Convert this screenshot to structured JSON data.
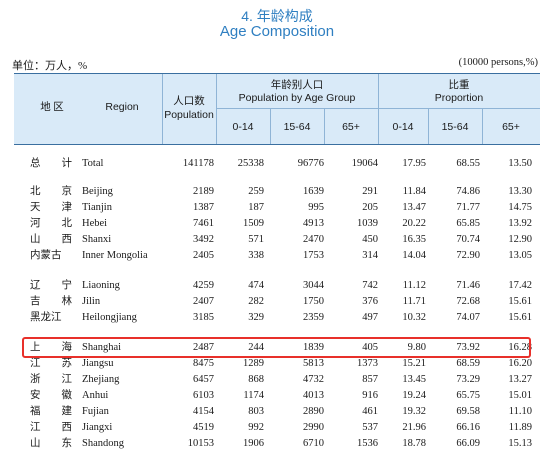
{
  "page": {
    "title_cn": "4. 年龄构成",
    "title_en": "Age Composition",
    "unit_left": "单位：万人，%",
    "unit_right": "(10000 persons,%)"
  },
  "header": {
    "region_cn": "地 区",
    "region_en": "Region",
    "pop_cn": "人口数",
    "pop_en": "Population",
    "age_group_cn": "年龄别人口",
    "age_group_en": "Population by Age Group",
    "proportion_cn": "比重",
    "proportion_en": "Proportion",
    "age_cols": [
      "0-14",
      "15-64",
      "65+"
    ],
    "prop_cols": [
      "0-14",
      "15-64",
      "65+"
    ]
  },
  "rows": [
    {
      "cn": "总　　计",
      "en": "Total",
      "pop": "141178",
      "a1": "25338",
      "a2": "96776",
      "a3": "19064",
      "p1": "17.95",
      "p2": "68.55",
      "p3": "13.50"
    },
    {
      "cn": "北　　京",
      "en": "Beijing",
      "pop": "2189",
      "a1": "259",
      "a2": "1639",
      "a3": "291",
      "p1": "11.84",
      "p2": "74.86",
      "p3": "13.30"
    },
    {
      "cn": "天　　津",
      "en": "Tianjin",
      "pop": "1387",
      "a1": "187",
      "a2": "995",
      "a3": "205",
      "p1": "13.47",
      "p2": "71.77",
      "p3": "14.75"
    },
    {
      "cn": "河　　北",
      "en": "Hebei",
      "pop": "7461",
      "a1": "1509",
      "a2": "4913",
      "a3": "1039",
      "p1": "20.22",
      "p2": "65.85",
      "p3": "13.92"
    },
    {
      "cn": "山　　西",
      "en": "Shanxi",
      "pop": "3492",
      "a1": "571",
      "a2": "2470",
      "a3": "450",
      "p1": "16.35",
      "p2": "70.74",
      "p3": "12.90"
    },
    {
      "cn": "内蒙古",
      "en": "Inner Mongolia",
      "pop": "2405",
      "a1": "338",
      "a2": "1753",
      "a3": "314",
      "p1": "14.04",
      "p2": "72.90",
      "p3": "13.05"
    },
    {
      "cn": "辽　　宁",
      "en": "Liaoning",
      "pop": "4259",
      "a1": "474",
      "a2": "3044",
      "a3": "742",
      "p1": "11.12",
      "p2": "71.46",
      "p3": "17.42"
    },
    {
      "cn": "吉　　林",
      "en": "Jilin",
      "pop": "2407",
      "a1": "282",
      "a2": "1750",
      "a3": "376",
      "p1": "11.71",
      "p2": "72.68",
      "p3": "15.61"
    },
    {
      "cn": "黑龙江",
      "en": "Heilongjiang",
      "pop": "3185",
      "a1": "329",
      "a2": "2359",
      "a3": "497",
      "p1": "10.32",
      "p2": "74.07",
      "p3": "15.61"
    },
    {
      "cn": "上　　海",
      "en": "Shanghai",
      "pop": "2487",
      "a1": "244",
      "a2": "1839",
      "a3": "405",
      "p1": "9.80",
      "p2": "73.92",
      "p3": "16.28"
    },
    {
      "cn": "江　　苏",
      "en": "Jiangsu",
      "pop": "8475",
      "a1": "1289",
      "a2": "5813",
      "a3": "1373",
      "p1": "15.21",
      "p2": "68.59",
      "p3": "16.20"
    },
    {
      "cn": "浙　　江",
      "en": "Zhejiang",
      "pop": "6457",
      "a1": "868",
      "a2": "4732",
      "a3": "857",
      "p1": "13.45",
      "p2": "73.29",
      "p3": "13.27"
    },
    {
      "cn": "安　　徽",
      "en": "Anhui",
      "pop": "6103",
      "a1": "1174",
      "a2": "4013",
      "a3": "916",
      "p1": "19.24",
      "p2": "65.75",
      "p3": "15.01"
    },
    {
      "cn": "福　　建",
      "en": "Fujian",
      "pop": "4154",
      "a1": "803",
      "a2": "2890",
      "a3": "461",
      "p1": "19.32",
      "p2": "69.58",
      "p3": "11.10"
    },
    {
      "cn": "江　　西",
      "en": "Jiangxi",
      "pop": "4519",
      "a1": "992",
      "a2": "2990",
      "a3": "537",
      "p1": "21.96",
      "p2": "66.16",
      "p3": "11.89"
    },
    {
      "cn": "山　　东",
      "en": "Shandong",
      "pop": "10153",
      "a1": "1906",
      "a2": "6710",
      "a3": "1536",
      "p1": "18.78",
      "p2": "66.09",
      "p3": "15.13"
    }
  ],
  "highlight_color": "#e8302a",
  "header_bg": "#d9eaf8",
  "title_color": "#2f7fc1"
}
